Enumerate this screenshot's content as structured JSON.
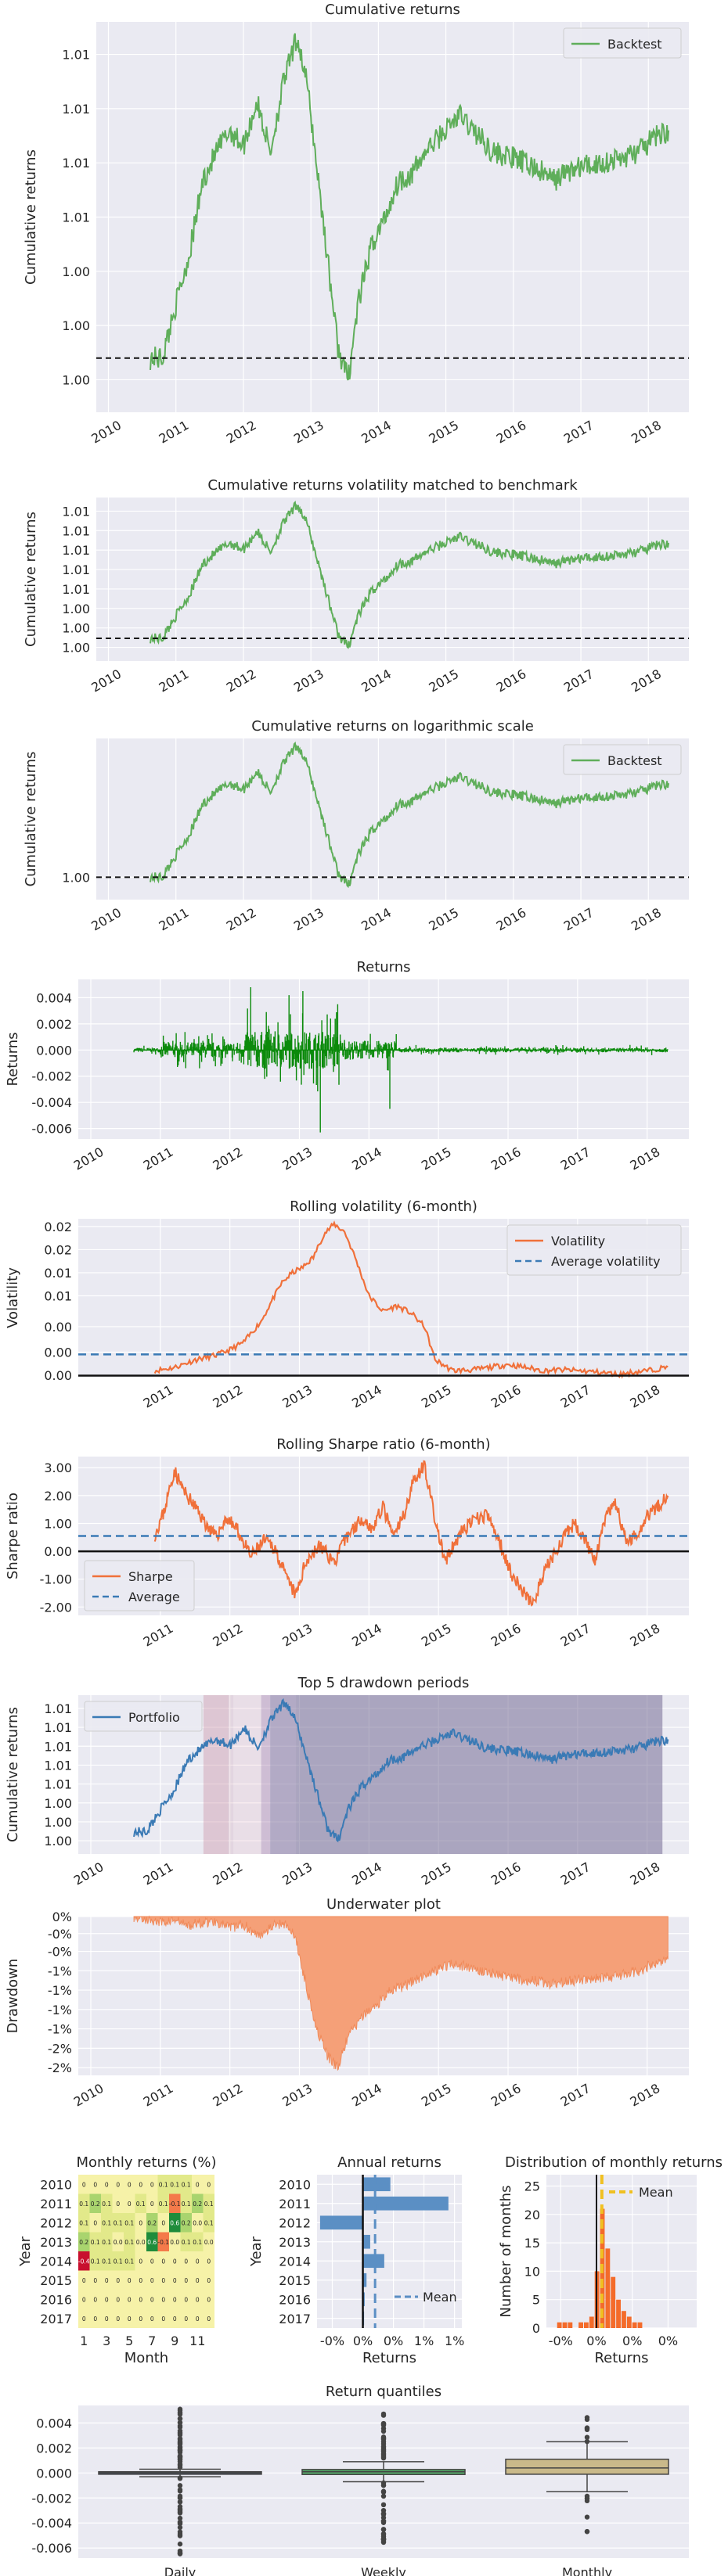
{
  "colors": {
    "plot_bg": "#eaeaf2",
    "grid": "#ffffff",
    "backtest_green": "#5fae5a",
    "returns_green": "#0b8a0b",
    "orange": "#f0703a",
    "avg_blue": "#3a7ab5",
    "portfolio_blue": "#3a7ab5",
    "underwater": "#f5a078",
    "box_tan": "#c9b98a"
  },
  "chart_data": [
    {
      "id": "cumret",
      "type": "line",
      "title": "Cumulative returns",
      "ylabel": "Cumulative returns",
      "xticks": [
        "2010",
        "2011",
        "2012",
        "2013",
        "2014",
        "2015",
        "2016",
        "2017",
        "2018"
      ],
      "yticks": [
        "1.00",
        "1.00",
        "1.00",
        "1.01",
        "1.01",
        "1.01",
        "1.01"
      ],
      "legend": [
        "Backtest"
      ],
      "legend_position": "top-right",
      "baseline": 1.0,
      "ylim": [
        0.9975,
        1.0155
      ],
      "series": [
        {
          "name": "Backtest",
          "x": [
            2010.62,
            2010.8,
            2011.0,
            2011.2,
            2011.4,
            2011.6,
            2011.8,
            2012.0,
            2012.2,
            2012.4,
            2012.6,
            2012.8,
            2012.95,
            2013.1,
            2013.25,
            2013.4,
            2013.55,
            2013.7,
            2013.9,
            2014.1,
            2014.3,
            2014.5,
            2014.7,
            2014.9,
            2015.2,
            2015.5,
            2015.7,
            2016.0,
            2016.3,
            2016.6,
            2016.8,
            2017.0,
            2017.3,
            2017.6,
            2017.9,
            2018.1,
            2018.3
          ],
          "values": [
            1.0,
            1.0,
            1.0025,
            1.0048,
            1.0082,
            1.0095,
            1.0105,
            1.0098,
            1.0118,
            1.0095,
            1.0128,
            1.0148,
            1.0125,
            1.0085,
            1.0045,
            1.0005,
            0.999,
            1.0025,
            1.0052,
            1.0065,
            1.0082,
            1.0085,
            1.0095,
            1.0102,
            1.0112,
            1.0102,
            1.0095,
            1.0092,
            1.0088,
            1.0082,
            1.0086,
            1.0088,
            1.009,
            1.0092,
            1.0096,
            1.0102,
            1.0105
          ]
        }
      ]
    },
    {
      "id": "cumret_vol",
      "type": "line",
      "title": "Cumulative returns volatility matched to benchmark",
      "ylabel": "Cumulative returns",
      "xticks": [
        "2010",
        "2011",
        "2012",
        "2013",
        "2014",
        "2015",
        "2016",
        "2017",
        "2018"
      ],
      "yticks": [
        "1.00",
        "1.00",
        "1.00",
        "1.01",
        "1.01",
        "1.01",
        "1.01",
        "1.01"
      ],
      "baseline": 1.0,
      "ylim": [
        0.9975,
        1.0155
      ],
      "series": [
        {
          "name": "",
          "ref": "cumret"
        }
      ]
    },
    {
      "id": "cumret_log",
      "type": "line",
      "title": "Cumulative returns on logarithmic scale",
      "ylabel": "Cumulative returns",
      "xticks": [
        "2010",
        "2011",
        "2012",
        "2013",
        "2014",
        "2015",
        "2016",
        "2017",
        "2018"
      ],
      "yticks": [
        "1.00"
      ],
      "legend": [
        "Backtest"
      ],
      "legend_position": "top-right",
      "baseline": 1.0,
      "ylim": [
        0.9975,
        1.0155
      ],
      "yscale": "log",
      "series": [
        {
          "name": "Backtest",
          "ref": "cumret"
        }
      ]
    },
    {
      "id": "returns",
      "type": "line",
      "title": "Returns",
      "ylabel": "Returns",
      "xticks": [
        "2010",
        "2011",
        "2012",
        "2013",
        "2014",
        "2015",
        "2016",
        "2017",
        "2018"
      ],
      "yticks": [
        "0.004",
        "0.002",
        "0.000",
        "-0.002",
        "-0.004",
        "-0.006"
      ],
      "ylim": [
        -0.0068,
        0.0054
      ],
      "regimes": [
        {
          "from": 2010.62,
          "to": 2011.0,
          "amp": 0.0004
        },
        {
          "from": 2011.0,
          "to": 2012.2,
          "amp": 0.0014
        },
        {
          "from": 2012.2,
          "to": 2013.6,
          "amp": 0.0032
        },
        {
          "from": 2013.6,
          "to": 2014.4,
          "amp": 0.0016
        },
        {
          "from": 2014.4,
          "to": 2018.3,
          "amp": 0.0004
        }
      ],
      "spikes": [
        [
          2012.3,
          0.0048
        ],
        [
          2012.5,
          -0.0022
        ],
        [
          2012.85,
          0.0042
        ],
        [
          2013.05,
          0.0045
        ],
        [
          2013.3,
          -0.0063
        ],
        [
          2013.55,
          0.0035
        ],
        [
          2014.3,
          -0.0045
        ]
      ]
    },
    {
      "id": "rolling_vol",
      "type": "line",
      "title": "Rolling volatility (6-month)",
      "ylabel": "Volatility",
      "xticks": [
        "2011",
        "2012",
        "2013",
        "2014",
        "2015",
        "2016",
        "2017",
        "2018"
      ],
      "yticks": [
        "0.02",
        "0.02",
        "0.01",
        "0.01",
        "0.00",
        "0.00",
        "0.00"
      ],
      "legend": [
        "Volatility",
        "Average volatility"
      ],
      "legend_position": "top-right",
      "average": 0.0029,
      "ylim": [
        0.0,
        0.0205
      ],
      "series": [
        {
          "name": "Volatility",
          "x": [
            2010.92,
            2011.2,
            2011.5,
            2011.8,
            2012.0,
            2012.2,
            2012.45,
            2012.6,
            2012.75,
            2012.9,
            2013.05,
            2013.2,
            2013.35,
            2013.5,
            2013.65,
            2013.8,
            2014.0,
            2014.2,
            2014.4,
            2014.6,
            2014.8,
            2014.95,
            2015.2,
            2015.5,
            2015.8,
            2016.0,
            2016.2,
            2016.5,
            2016.8,
            2017.0,
            2017.3,
            2017.6,
            2017.8,
            2018.0,
            2018.2,
            2018.3
          ],
          "values": [
            0.0008,
            0.0012,
            0.0022,
            0.0028,
            0.0035,
            0.0045,
            0.0072,
            0.0098,
            0.0122,
            0.0135,
            0.0142,
            0.0155,
            0.0185,
            0.0198,
            0.0188,
            0.0155,
            0.0105,
            0.0085,
            0.0092,
            0.0083,
            0.0065,
            0.0022,
            0.0008,
            0.0009,
            0.0013,
            0.0016,
            0.0013,
            0.0008,
            0.0009,
            0.0008,
            0.0006,
            0.0003,
            0.0006,
            0.0008,
            0.0011,
            0.0013
          ]
        }
      ]
    },
    {
      "id": "rolling_sharpe",
      "type": "line",
      "title": "Rolling Sharpe ratio (6-month)",
      "ylabel": "Sharpe ratio",
      "xticks": [
        "2011",
        "2012",
        "2013",
        "2014",
        "2015",
        "2016",
        "2017",
        "2018"
      ],
      "yticks": [
        "3.00",
        "2.00",
        "1.00",
        "0.00",
        "-1.00",
        "-2.00"
      ],
      "legend": [
        "Sharpe",
        "Average"
      ],
      "legend_position": "bottom-left",
      "average": 0.55,
      "ylim": [
        -2.3,
        3.4
      ],
      "series": [
        {
          "name": "Sharpe",
          "x": [
            2010.92,
            2011.05,
            2011.2,
            2011.35,
            2011.5,
            2011.65,
            2011.8,
            2011.95,
            2012.1,
            2012.3,
            2012.5,
            2012.65,
            2012.8,
            2012.95,
            2013.1,
            2013.3,
            2013.5,
            2013.7,
            2013.9,
            2014.05,
            2014.2,
            2014.35,
            2014.5,
            2014.65,
            2014.8,
            2014.95,
            2015.1,
            2015.3,
            2015.5,
            2015.7,
            2015.9,
            2016.05,
            2016.2,
            2016.35,
            2016.55,
            2016.75,
            2016.95,
            2017.1,
            2017.25,
            2017.4,
            2017.55,
            2017.7,
            2017.85,
            2018.0,
            2018.15,
            2018.3
          ],
          "values": [
            0.6,
            1.4,
            2.9,
            2.1,
            1.6,
            1.0,
            0.5,
            1.2,
            0.8,
            -0.2,
            0.4,
            0.1,
            -0.9,
            -1.6,
            -0.3,
            0.2,
            -0.4,
            0.6,
            1.2,
            0.8,
            1.6,
            0.5,
            1.3,
            2.6,
            3.1,
            1.1,
            -0.4,
            0.6,
            1.1,
            1.3,
            0.2,
            -0.8,
            -1.4,
            -1.9,
            -0.6,
            0.3,
            1.0,
            0.5,
            -0.4,
            1.2,
            1.7,
            0.3,
            0.6,
            1.3,
            1.6,
            2.0
          ]
        }
      ]
    },
    {
      "id": "drawdown_periods",
      "type": "line",
      "title": "Top 5 drawdown periods",
      "ylabel": "Cumulative returns",
      "xticks": [
        "2010",
        "2011",
        "2012",
        "2013",
        "2014",
        "2015",
        "2016",
        "2017",
        "2018"
      ],
      "yticks": [
        "1.00",
        "1.00",
        "1.00",
        "1.01",
        "1.01",
        "1.01",
        "1.01",
        "1.01"
      ],
      "legend": [
        "Portfolio"
      ],
      "legend_position": "top-left",
      "ylim": [
        0.9975,
        1.0155
      ],
      "spans": [
        {
          "from": 2011.62,
          "to": 2011.98,
          "color": "#c98ba0",
          "opacity": 0.38
        },
        {
          "from": 2011.98,
          "to": 2012.05,
          "color": "#c98ba0",
          "opacity": 0.22
        },
        {
          "from": 2012.05,
          "to": 2012.45,
          "color": "#e6b0bf",
          "opacity": 0.2
        },
        {
          "from": 2012.45,
          "to": 2012.58,
          "color": "#9b6b9e",
          "opacity": 0.35
        },
        {
          "from": 2012.58,
          "to": 2012.95,
          "color": "#7a6a98",
          "opacity": 0.5
        },
        {
          "from": 2012.95,
          "to": 2018.22,
          "color": "#6a5f8c",
          "opacity": 0.5
        }
      ],
      "series": [
        {
          "name": "Portfolio",
          "ref": "cumret"
        }
      ]
    },
    {
      "id": "underwater",
      "type": "area",
      "title": "Underwater plot",
      "ylabel": "Drawdown",
      "xticks": [
        "2010",
        "2011",
        "2012",
        "2013",
        "2014",
        "2015",
        "2016",
        "2017",
        "2018"
      ],
      "yticks": [
        "0%",
        "-0%",
        "-0%",
        "-1%",
        "-1%",
        "-1%",
        "-1%",
        "-2%",
        "-2%"
      ],
      "ylim": [
        -2.05,
        0.0
      ],
      "series": [
        {
          "name": "",
          "x": [
            2010.62,
            2010.8,
            2011.0,
            2011.2,
            2011.4,
            2011.6,
            2011.8,
            2012.0,
            2012.2,
            2012.4,
            2012.6,
            2012.8,
            2012.95,
            2013.1,
            2013.25,
            2013.4,
            2013.55,
            2013.7,
            2013.9,
            2014.1,
            2014.3,
            2014.5,
            2014.7,
            2014.9,
            2015.2,
            2015.5,
            2015.7,
            2016.0,
            2016.3,
            2016.6,
            2016.8,
            2017.0,
            2017.3,
            2017.6,
            2017.9,
            2018.1,
            2018.3
          ],
          "values": [
            0.0,
            -0.03,
            -0.08,
            -0.05,
            -0.12,
            -0.08,
            -0.06,
            -0.15,
            -0.1,
            -0.25,
            -0.12,
            -0.08,
            -0.3,
            -0.9,
            -1.45,
            -1.8,
            -1.95,
            -1.55,
            -1.3,
            -1.15,
            -0.95,
            -0.9,
            -0.8,
            -0.72,
            -0.6,
            -0.68,
            -0.72,
            -0.78,
            -0.82,
            -0.86,
            -0.84,
            -0.82,
            -0.8,
            -0.76,
            -0.7,
            -0.6,
            -0.55
          ]
        }
      ]
    },
    {
      "id": "monthly_heatmap",
      "type": "heatmap",
      "title": "Monthly returns (%)",
      "xlabel": "Month",
      "ylabel": "Year",
      "xticks": [
        "1",
        "3",
        "5",
        "7",
        "9",
        "11"
      ],
      "years": [
        "2010",
        "2011",
        "2012",
        "2013",
        "2014",
        "2015",
        "2016",
        "2017"
      ],
      "cells": [
        [
          "0",
          "0",
          "0",
          "0",
          "0",
          "0",
          "0",
          "0.1",
          "0.1",
          "0.1",
          "0",
          "0"
        ],
        [
          "0.1",
          "0.2",
          "0.1",
          "0",
          "0",
          "0.1",
          "0",
          "0.1",
          "-0.1",
          "0.1",
          "0.2",
          "0.1"
        ],
        [
          "0.1",
          "0",
          "0.1",
          "0.1",
          "0.1",
          "0",
          "0.2",
          "0",
          "0.6",
          "0.2",
          "0.0",
          "0.1"
        ],
        [
          "0.2",
          "0.1",
          "0.1",
          "0.0",
          "0.1",
          "0.0",
          "0.6",
          "-0.1",
          "0.0",
          "0.1",
          "0.1",
          "0.0"
        ],
        [
          "-0.4",
          "0.1",
          "0.1",
          "0.1",
          "0.1",
          "0",
          "0",
          "0",
          "0",
          "0",
          "0",
          "0"
        ],
        [
          "0",
          "0",
          "0",
          "0",
          "0",
          "0",
          "0",
          "0",
          "0",
          "0",
          "0",
          "0"
        ],
        [
          "0",
          "0",
          "0",
          "0",
          "0",
          "0",
          "0",
          "0",
          "0",
          "0",
          "0",
          "0"
        ],
        [
          "0",
          "0",
          "0",
          "0",
          "0",
          "0",
          "0",
          "0",
          "0",
          "0",
          "0",
          "0"
        ]
      ],
      "values": [
        [
          0,
          0,
          0,
          0,
          0,
          0,
          0,
          0.1,
          0.1,
          0.1,
          0,
          0
        ],
        [
          0.1,
          0.2,
          0.1,
          0,
          0,
          0.1,
          0,
          0.1,
          -0.1,
          0.1,
          0.2,
          0.1
        ],
        [
          0.1,
          0,
          0.1,
          0.1,
          0.1,
          0,
          0.2,
          0,
          0.6,
          0.2,
          0,
          0.1
        ],
        [
          0.2,
          0.1,
          0.1,
          0,
          0.1,
          0,
          0.6,
          -0.1,
          0,
          0.1,
          0.1,
          0
        ],
        [
          -0.4,
          0.1,
          0.1,
          0.1,
          0.1,
          0,
          0,
          0,
          0,
          0,
          0,
          0
        ],
        [
          0,
          0,
          0,
          0,
          0,
          0,
          0,
          0,
          0,
          0,
          0,
          0
        ],
        [
          0,
          0,
          0,
          0,
          0,
          0,
          0,
          0,
          0,
          0,
          0,
          0
        ],
        [
          0,
          0,
          0,
          0,
          0,
          0,
          0,
          0,
          0,
          0,
          0,
          0
        ]
      ]
    },
    {
      "id": "annual_returns",
      "type": "bar",
      "title": "Annual returns",
      "xlabel": "Returns",
      "ylabel": "Year",
      "categories": [
        "2010",
        "2011",
        "2012",
        "2013",
        "2014",
        "2015",
        "2016",
        "2017"
      ],
      "values": [
        0.45,
        1.4,
        -0.7,
        0.12,
        0.35,
        0.06,
        0.03,
        0.02
      ],
      "xticks": [
        "-0%",
        "0%",
        "0%",
        "1%",
        "1%"
      ],
      "xtick_values": [
        -0.5,
        0.0,
        0.5,
        1.0,
        1.5
      ],
      "xlim": [
        -0.75,
        1.62
      ],
      "mean": 0.2,
      "legend": [
        "Mean"
      ],
      "legend_position": "bottom-right"
    },
    {
      "id": "monthly_dist",
      "type": "bar",
      "title": "Distribution of monthly returns",
      "xlabel": "Returns",
      "ylabel": "Number of months",
      "xticks": [
        "-0%",
        "0%",
        "0%",
        "0%"
      ],
      "xtick_values": [
        -0.2,
        0.0,
        0.2,
        0.4
      ],
      "yticks": [
        "0",
        "5",
        "10",
        "15",
        "20",
        "25"
      ],
      "ylim": [
        0,
        27
      ],
      "xlim": [
        -0.28,
        0.56
      ],
      "bin_edges": [
        -0.22,
        -0.19,
        -0.16,
        -0.13,
        -0.1,
        -0.07,
        -0.04,
        -0.01,
        0.02,
        0.05,
        0.08,
        0.11,
        0.14,
        0.17,
        0.2,
        0.23,
        0.26
      ],
      "counts": [
        1,
        1,
        1,
        0,
        1,
        1,
        2,
        10,
        21,
        14,
        9,
        5,
        3,
        2,
        1,
        1
      ],
      "mean": 0.03,
      "legend": [
        "Mean"
      ],
      "legend_position": "top-right"
    },
    {
      "id": "return_quantiles",
      "type": "box",
      "title": "Return quantiles",
      "yticks": [
        "0.004",
        "0.002",
        "0.000",
        "-0.002",
        "-0.004",
        "-0.006"
      ],
      "ylim": [
        -0.0068,
        0.0054
      ],
      "categories": [
        "Daily",
        "Weekly",
        "Monthly"
      ],
      "boxes": [
        {
          "q1": -0.0001,
          "median": 0.0,
          "q3": 0.0001,
          "whislo": -0.0003,
          "whishi": 0.0003,
          "color": "#4c72b0"
        },
        {
          "q1": -0.00012,
          "median": 0.0001,
          "q3": 0.00028,
          "whislo": -0.0007,
          "whishi": 0.0009,
          "color": "#55a868"
        },
        {
          "q1": -0.0001,
          "median": 0.0004,
          "q3": 0.0011,
          "whislo": -0.0015,
          "whishi": 0.0025,
          "color": "#c9b98a"
        }
      ]
    }
  ]
}
